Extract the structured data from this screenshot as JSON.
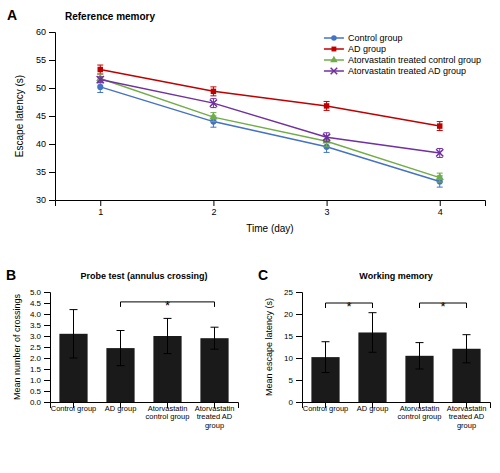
{
  "chart_data": [
    {
      "type": "line",
      "panel_label": "A",
      "title": "Reference memory",
      "xlabel": "Time (day)",
      "ylabel": "Escape latency (s)",
      "x": [
        1,
        2,
        3,
        4
      ],
      "xlim": [
        0.6,
        4.4
      ],
      "xticks": [
        1,
        2,
        3,
        4
      ],
      "ylim": [
        30,
        60
      ],
      "yticks": [
        30,
        35,
        40,
        45,
        50,
        55,
        60
      ],
      "grid": false,
      "legend": "upper right",
      "series": [
        {
          "name": "Control group",
          "color": "#4472c4",
          "marker": "circle",
          "values": [
            50.2,
            44.0,
            39.5,
            33.3
          ],
          "errors": [
            1.0,
            1.0,
            1.0,
            1.0
          ]
        },
        {
          "name": "AD group",
          "color": "#c00000",
          "marker": "square",
          "values": [
            53.3,
            49.4,
            46.8,
            43.2
          ],
          "errors": [
            0.8,
            0.8,
            0.8,
            0.8
          ]
        },
        {
          "name": "Atorvastatin treated control group",
          "color": "#70ad47",
          "marker": "triangle",
          "values": [
            51.7,
            44.8,
            40.5,
            34.0
          ],
          "errors": [
            0.8,
            0.8,
            1.0,
            0.8
          ]
        },
        {
          "name": "Atorvastatin treated AD group",
          "color": "#7030a0",
          "marker": "x",
          "values": [
            51.5,
            47.3,
            41.2,
            38.4
          ],
          "errors": [
            0.5,
            0.8,
            0.8,
            0.8
          ]
        }
      ]
    },
    {
      "type": "bar",
      "panel_label": "B",
      "title": "Probe test (annulus crossing)",
      "ylabel": "Mean number of crossings",
      "categories": [
        "Control group",
        "AD group",
        "Atorvastatin\ncontrol group",
        "Atorvastatin\ntreated AD\ngroup"
      ],
      "values": [
        3.1,
        2.45,
        3.0,
        2.9
      ],
      "errors": [
        1.1,
        0.8,
        0.8,
        0.5
      ],
      "color": "#1a1a1a",
      "ylim": [
        0,
        5
      ],
      "yticks": [
        {
          "value": 0,
          "label": "0.0"
        },
        0.5,
        {
          "value": 1,
          "label": "1.0"
        },
        1.5,
        {
          "value": 2,
          "label": "2.0"
        },
        2.5,
        {
          "value": 3,
          "label": "3.0"
        },
        3.5,
        {
          "value": 4,
          "label": "4.0"
        },
        4.5,
        {
          "value": 5,
          "label": "5.0"
        }
      ],
      "grid": false,
      "brackets": [
        {
          "from": 1,
          "to": 3,
          "y": 4.55,
          "text": "*"
        }
      ]
    },
    {
      "type": "bar",
      "panel_label": "C",
      "title": "Working memory",
      "ylabel": "Mean escape latency (s)",
      "categories": [
        "Control group",
        "AD group",
        "Atorvastatin\ncontrol group",
        "Atorvastatin\ntreated AD\ngroup"
      ],
      "values": [
        10.2,
        15.8,
        10.5,
        12.1
      ],
      "errors": [
        3.5,
        4.5,
        3.0,
        3.2
      ],
      "color": "#1a1a1a",
      "ylim": [
        0,
        25
      ],
      "yticks": [
        0,
        5,
        10,
        15,
        20,
        25
      ],
      "grid": false,
      "brackets": [
        {
          "from": 0,
          "to": 1,
          "y": 22.5,
          "text": "*"
        },
        {
          "from": 2,
          "to": 3,
          "y": 22.5,
          "text": "*"
        }
      ]
    }
  ]
}
